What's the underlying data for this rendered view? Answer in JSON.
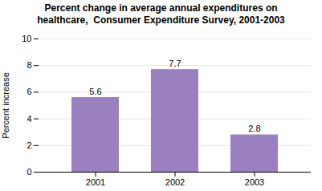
{
  "chart_data": {
    "type": "bar",
    "title": "Percent change in average annual expenditures on\nhealthcare,  Consumer Expenditure Survey, 2001-2003",
    "ylabel": "Percent increase",
    "categories": [
      "2001",
      "2002",
      "2003"
    ],
    "values": [
      5.6,
      7.7,
      2.8
    ],
    "color": "#9B80C0",
    "ylim": [
      0,
      10
    ],
    "yticks": [
      0,
      2,
      4,
      6,
      8,
      10
    ],
    "grid": true,
    "data_labels": true
  }
}
